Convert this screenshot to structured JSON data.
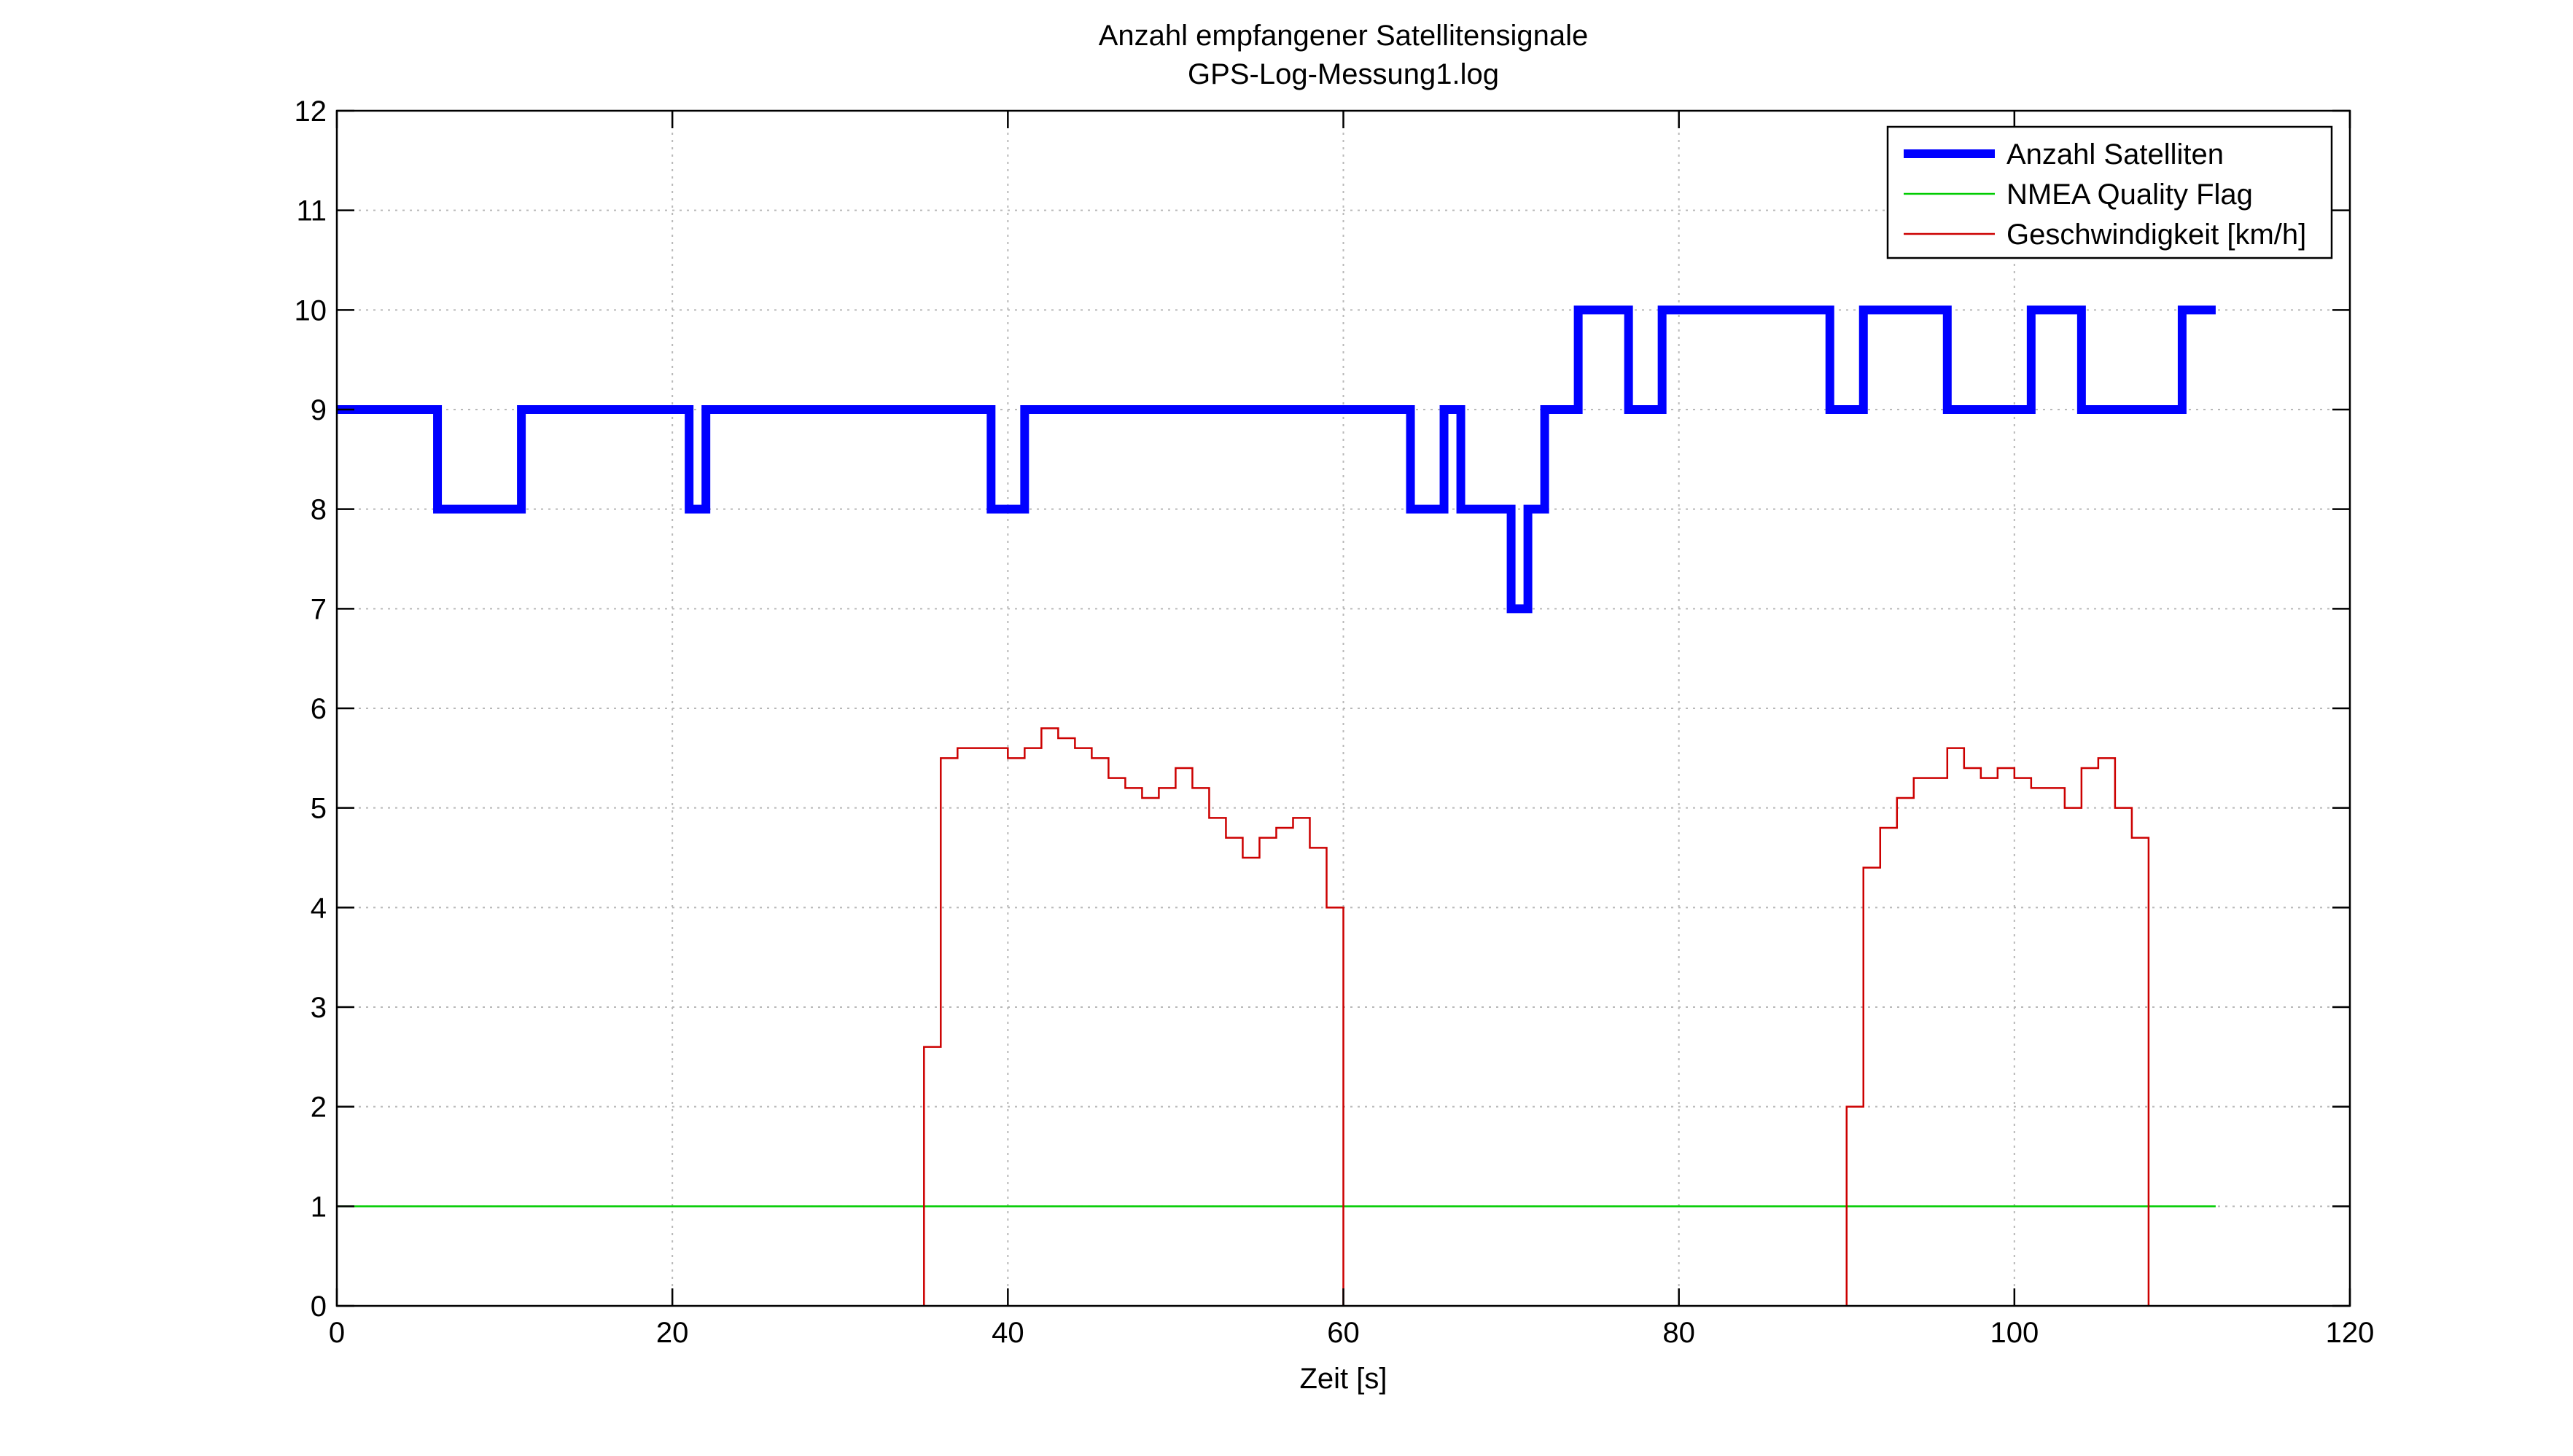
{
  "chart_data": {
    "type": "line",
    "title": "Anzahl empfangener Satellitensignale",
    "subtitle": "GPS-Log-Messung1.log",
    "xlabel": "Zeit [s]",
    "ylabel": "",
    "xlim": [
      0,
      120
    ],
    "ylim": [
      0,
      12
    ],
    "xticks": [
      0,
      20,
      40,
      60,
      80,
      100,
      120
    ],
    "yticks": [
      0,
      1,
      2,
      3,
      4,
      5,
      6,
      7,
      8,
      9,
      10,
      11,
      12
    ],
    "grid": true,
    "legend_position": "top-right",
    "step": true,
    "series": [
      {
        "name": "Anzahl Satelliten",
        "color": "#0000ff",
        "line_style": "thick",
        "x": [
          0,
          6,
          11,
          21,
          22,
          39,
          41,
          64,
          66,
          67,
          70,
          71,
          72,
          74,
          77,
          79,
          89,
          91,
          96,
          101,
          104,
          110,
          112
        ],
        "y": [
          9,
          8,
          9,
          8,
          9,
          8,
          9,
          8,
          9,
          8,
          7,
          8,
          9,
          10,
          9,
          10,
          9,
          10,
          9,
          10,
          9,
          10,
          10
        ]
      },
      {
        "name": "NMEA Quality Flag",
        "color": "#00cc00",
        "line_style": "thin",
        "x": [
          0,
          112
        ],
        "y": [
          1,
          1
        ]
      },
      {
        "name": "Geschwindigkeit [km/h]",
        "color": "#cc0000",
        "line_style": "thin",
        "x": [
          35,
          36,
          37,
          38,
          39,
          40,
          41,
          42,
          43,
          44,
          45,
          46,
          47,
          48,
          49,
          50,
          51,
          52,
          53,
          54,
          55,
          56,
          57,
          58,
          59,
          60,
          90,
          91,
          92,
          93,
          94,
          95,
          96,
          97,
          98,
          99,
          100,
          101,
          102,
          103,
          104,
          105,
          106,
          107,
          108
        ],
        "y": [
          2.6,
          5.5,
          5.6,
          5.6,
          5.6,
          5.5,
          5.6,
          5.8,
          5.7,
          5.6,
          5.5,
          5.3,
          5.2,
          5.1,
          5.2,
          5.4,
          5.2,
          4.9,
          4.7,
          4.5,
          4.7,
          4.8,
          4.9,
          4.6,
          4.0,
          0,
          2.0,
          4.4,
          4.8,
          5.1,
          5.3,
          5.3,
          5.6,
          5.4,
          5.3,
          5.4,
          5.3,
          5.2,
          5.2,
          5.0,
          5.4,
          5.5,
          5.0,
          4.7,
          0
        ]
      }
    ]
  }
}
